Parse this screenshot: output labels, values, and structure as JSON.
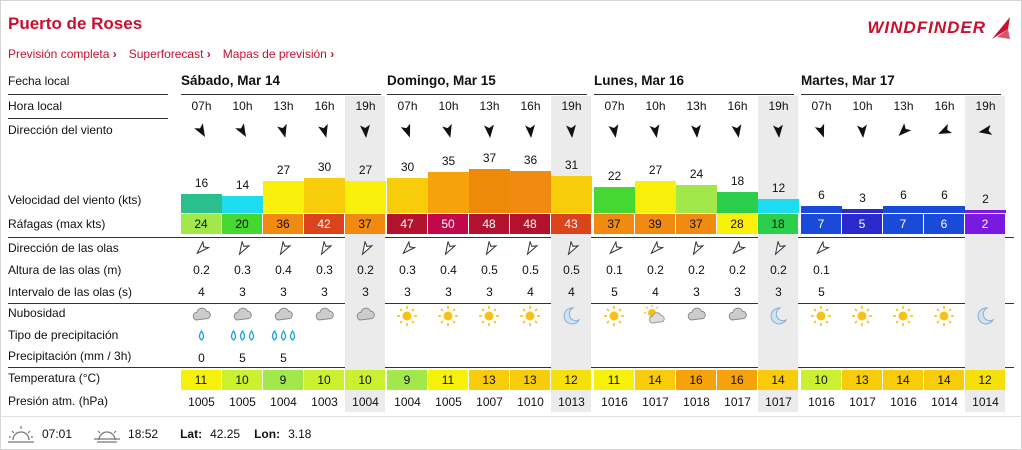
{
  "header": {
    "title": "Puerto de Roses",
    "logo_text": "WINDFINDER",
    "nav": [
      "Previsión completa",
      "Superforecast",
      "Mapas de previsión"
    ]
  },
  "labels": {
    "local_date": "Fecha local",
    "local_hour": "Hora local",
    "wind_dir": "Dirección del viento",
    "wind_speed": "Velocidad del viento (kts)",
    "gusts": "Ráfagas (max kts)",
    "wave_dir": "Dirección de las olas",
    "wave_height": "Altura de las olas (m)",
    "wave_interval": "Intervalo de las olas (s)",
    "cloud": "Nubosidad",
    "precip_type": "Tipo de precipitación",
    "precip": "Precipitación (mm / 3h)",
    "temp": "Temperatura (°C)",
    "pressure": "Presión atm. (hPa)"
  },
  "days": [
    {
      "name": "Sábado, Mar 14"
    },
    {
      "name": "Domingo, Mar 15"
    },
    {
      "name": "Lunes, Mar 16"
    },
    {
      "name": "Martes, Mar 17"
    }
  ],
  "hours": [
    "07h",
    "10h",
    "13h",
    "16h",
    "19h"
  ],
  "columns": [
    {
      "wind": 16,
      "wind_color": "#2bbf8e",
      "wind_dir": "sw-ish",
      "gust": 24,
      "gust_color": "#a3e84a",
      "wave_h": "0.2",
      "wave_i": "4",
      "cloud": "cloudy",
      "ptype": "drop1",
      "precip": "0",
      "temp": 11,
      "temp_color": "#f6f00a",
      "pres": "1005"
    },
    {
      "wind": 14,
      "wind_color": "#1edcf0",
      "gust": 20,
      "gust_color": "#46d832",
      "wave_h": "0.3",
      "wave_i": "3",
      "cloud": "cloudy",
      "ptype": "drop3",
      "precip": "5",
      "temp": 10,
      "temp_color": "#cbf02f",
      "pres": "1005"
    },
    {
      "wind": 27,
      "wind_color": "#f8f00a",
      "gust": 36,
      "gust_color": "#f08a10",
      "wave_h": "0.4",
      "wave_i": "3",
      "cloud": "cloudy",
      "ptype": "drop3",
      "precip": "5",
      "temp": 9,
      "temp_color": "#a3e84a",
      "pres": "1004"
    },
    {
      "wind": 30,
      "wind_color": "#f8cc0a",
      "gust": 42,
      "gust_color": "#d9441c",
      "wave_h": "0.3",
      "wave_i": "3",
      "cloud": "cloudy",
      "ptype": "",
      "precip": "",
      "temp": 10,
      "temp_color": "#cbf02f",
      "pres": "1003"
    },
    {
      "wind": 27,
      "wind_color": "#f8f00a",
      "gust": 37,
      "gust_color": "#f08a10",
      "wave_h": "0.2",
      "wave_i": "3",
      "cloud": "cloudy",
      "ptype": "",
      "precip": "",
      "temp": 10,
      "temp_color": "#cbf02f",
      "pres": "1004"
    },
    {
      "wind": 30,
      "wind_color": "#f8cc0a",
      "gust": 47,
      "gust_color": "#b2122e",
      "wave_h": "0.3",
      "wave_i": "3",
      "cloud": "sun",
      "ptype": "",
      "precip": "",
      "temp": 9,
      "temp_color": "#a3e84a",
      "pres": "1004"
    },
    {
      "wind": 35,
      "wind_color": "#f5a20c",
      "gust": 50,
      "gust_color": "#c0084b",
      "wave_h": "0.4",
      "wave_i": "3",
      "cloud": "sun",
      "ptype": "",
      "precip": "",
      "temp": 11,
      "temp_color": "#f6f00a",
      "pres": "1005"
    },
    {
      "wind": 37,
      "wind_color": "#ee8a0a",
      "gust": 48,
      "gust_color": "#b2122e",
      "wave_h": "0.5",
      "wave_i": "3",
      "cloud": "sun",
      "ptype": "",
      "precip": "",
      "temp": 13,
      "temp_color": "#f8cc0a",
      "pres": "1007"
    },
    {
      "wind": 36,
      "wind_color": "#f08a10",
      "gust": 48,
      "gust_color": "#b2122e",
      "wave_h": "0.5",
      "wave_i": "4",
      "cloud": "sun",
      "ptype": "",
      "precip": "",
      "temp": 13,
      "temp_color": "#f8cc0a",
      "pres": "1010"
    },
    {
      "wind": 31,
      "wind_color": "#f8cc0a",
      "gust": 43,
      "gust_color": "#d9441c",
      "wave_h": "0.5",
      "wave_i": "4",
      "cloud": "moon",
      "ptype": "",
      "precip": "",
      "temp": 12,
      "temp_color": "#f6e00a",
      "pres": "1013"
    },
    {
      "wind": 22,
      "wind_color": "#46d832",
      "gust": 37,
      "gust_color": "#f08a10",
      "wave_h": "0.1",
      "wave_i": "5",
      "cloud": "sun",
      "ptype": "",
      "precip": "",
      "temp": 11,
      "temp_color": "#f6f00a",
      "pres": "1016"
    },
    {
      "wind": 27,
      "wind_color": "#f8f00a",
      "gust": 39,
      "gust_color": "#f08a10",
      "wave_h": "0.2",
      "wave_i": "4",
      "cloud": "suncloud",
      "ptype": "",
      "precip": "",
      "temp": 14,
      "temp_color": "#f8cc0a",
      "pres": "1017"
    },
    {
      "wind": 24,
      "wind_color": "#a3e84a",
      "gust": 37,
      "gust_color": "#f08a10",
      "wave_h": "0.2",
      "wave_i": "3",
      "cloud": "cloudy",
      "ptype": "",
      "precip": "",
      "temp": 16,
      "temp_color": "#f5a20c",
      "pres": "1018"
    },
    {
      "wind": 18,
      "wind_color": "#2bcf4c",
      "gust": 28,
      "gust_color": "#f8f00a",
      "wave_h": "0.2",
      "wave_i": "3",
      "cloud": "cloudy",
      "ptype": "",
      "precip": "",
      "temp": 16,
      "temp_color": "#f5a20c",
      "pres": "1017"
    },
    {
      "wind": 12,
      "wind_color": "#1edcf0",
      "gust": 18,
      "gust_color": "#2bcf4c",
      "wave_h": "0.2",
      "wave_i": "3",
      "cloud": "moon",
      "ptype": "",
      "precip": "",
      "temp": 14,
      "temp_color": "#f8cc0a",
      "pres": "1017"
    },
    {
      "wind": 6,
      "wind_color": "#1a4ad8",
      "gust": 7,
      "gust_color": "#1a4ad8",
      "wave_h": "0.1",
      "wave_i": "5",
      "cloud": "sun",
      "ptype": "",
      "precip": "",
      "temp": 10,
      "temp_color": "#cbf02f",
      "pres": "1016"
    },
    {
      "wind": 3,
      "wind_color": "#2a2acb",
      "gust": 5,
      "gust_color": "#2a2acb",
      "wave_h": "",
      "wave_i": "",
      "cloud": "sun",
      "ptype": "",
      "precip": "",
      "temp": 13,
      "temp_color": "#f8cc0a",
      "pres": "1017"
    },
    {
      "wind": 6,
      "wind_color": "#1a4ad8",
      "gust": 7,
      "gust_color": "#1a4ad8",
      "wave_h": "",
      "wave_i": "",
      "cloud": "sun",
      "ptype": "",
      "precip": "",
      "temp": 14,
      "temp_color": "#f8cc0a",
      "pres": "1016"
    },
    {
      "wind": 6,
      "wind_color": "#1a4ad8",
      "gust": 6,
      "gust_color": "#1a4ad8",
      "wave_h": "",
      "wave_i": "",
      "cloud": "sun",
      "ptype": "",
      "precip": "",
      "temp": 14,
      "temp_color": "#f8cc0a",
      "pres": "1014"
    },
    {
      "wind": 2,
      "wind_color": "#7a1ae0",
      "gust": 2,
      "gust_color": "#7a1ae0",
      "wave_h": "",
      "wave_i": "",
      "cloud": "moon",
      "ptype": "",
      "precip": "",
      "temp": 12,
      "temp_color": "#f6e00a",
      "pres": "1014"
    }
  ],
  "footer": {
    "sunrise": "07:01",
    "sunset": "18:52",
    "lat_label": "Lat:",
    "lat": "42.25",
    "lon_label": "Lon:",
    "lon": "3.18"
  }
}
